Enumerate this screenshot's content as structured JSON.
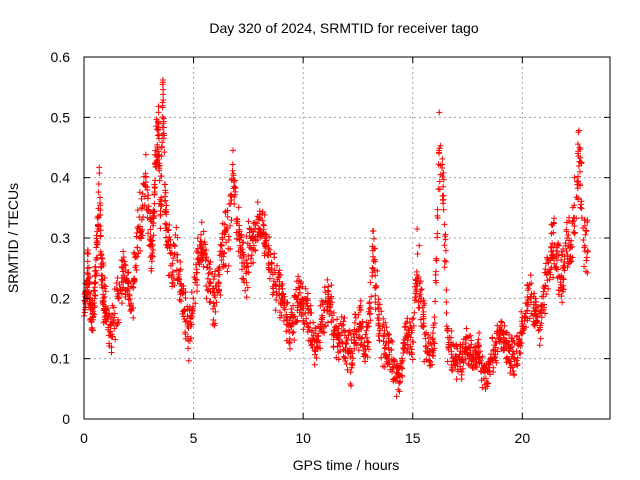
{
  "chart_data": {
    "type": "scatter",
    "title": "Day 320 of 2024, SRMTID for receiver tago",
    "xlabel": "GPS time / hours",
    "ylabel": "SRMTID / TECUs",
    "xlim": [
      0,
      24
    ],
    "ylim": [
      0,
      0.6
    ],
    "xticks": [
      0,
      5,
      10,
      15,
      20
    ],
    "yticks": [
      0,
      0.1,
      0.2,
      0.3,
      0.4,
      0.5,
      0.6
    ],
    "xtick_labels": [
      "0",
      "5",
      "10",
      "15",
      "20"
    ],
    "ytick_labels": [
      "0",
      "0.1",
      "0.2",
      "0.3",
      "0.4",
      "0.5",
      "0.6"
    ],
    "grid": true,
    "marker": "+",
    "color": "#ff0000",
    "series": [
      {
        "name": "SRMTID",
        "x": [
          0.0,
          0.1,
          0.2,
          0.3,
          0.4,
          0.5,
          0.6,
          0.7,
          0.8,
          0.9,
          1.0,
          1.2,
          1.4,
          1.6,
          1.8,
          2.0,
          2.2,
          2.4,
          2.6,
          2.8,
          3.0,
          3.1,
          3.2,
          3.3,
          3.4,
          3.5,
          3.6,
          3.7,
          3.8,
          4.0,
          4.2,
          4.4,
          4.6,
          4.8,
          5.0,
          5.2,
          5.4,
          5.6,
          5.8,
          6.0,
          6.2,
          6.4,
          6.6,
          6.8,
          7.0,
          7.2,
          7.4,
          7.6,
          7.8,
          8.0,
          8.2,
          8.4,
          8.6,
          8.8,
          9.0,
          9.2,
          9.4,
          9.6,
          9.8,
          10.0,
          10.2,
          10.4,
          10.6,
          10.8,
          11.0,
          11.2,
          11.4,
          11.6,
          11.8,
          12.0,
          12.2,
          12.4,
          12.6,
          12.8,
          13.0,
          13.2,
          13.4,
          13.6,
          13.8,
          14.0,
          14.2,
          14.4,
          14.6,
          14.8,
          15.0,
          15.2,
          15.4,
          15.6,
          15.8,
          16.0,
          16.2,
          16.4,
          16.6,
          16.8,
          17.0,
          17.2,
          17.4,
          17.6,
          17.8,
          18.0,
          18.2,
          18.4,
          18.6,
          18.8,
          19.0,
          19.2,
          19.4,
          19.6,
          19.8,
          20.0,
          20.2,
          20.4,
          20.6,
          20.8,
          21.0,
          21.2,
          21.4,
          21.6,
          21.8,
          22.0,
          22.2,
          22.4,
          22.6,
          22.8
        ],
        "y": [
          0.19,
          0.21,
          0.25,
          0.18,
          0.16,
          0.22,
          0.3,
          0.38,
          0.25,
          0.2,
          0.18,
          0.15,
          0.17,
          0.2,
          0.24,
          0.22,
          0.19,
          0.28,
          0.32,
          0.42,
          0.3,
          0.28,
          0.35,
          0.45,
          0.48,
          0.33,
          0.55,
          0.36,
          0.3,
          0.25,
          0.28,
          0.22,
          0.18,
          0.15,
          0.2,
          0.26,
          0.29,
          0.25,
          0.22,
          0.2,
          0.24,
          0.3,
          0.28,
          0.42,
          0.32,
          0.27,
          0.25,
          0.29,
          0.3,
          0.33,
          0.3,
          0.28,
          0.24,
          0.22,
          0.2,
          0.18,
          0.15,
          0.17,
          0.2,
          0.19,
          0.17,
          0.14,
          0.12,
          0.15,
          0.18,
          0.2,
          0.16,
          0.13,
          0.15,
          0.12,
          0.1,
          0.14,
          0.16,
          0.12,
          0.15,
          0.28,
          0.18,
          0.14,
          0.12,
          0.11,
          0.08,
          0.06,
          0.12,
          0.15,
          0.13,
          0.25,
          0.2,
          0.12,
          0.1,
          0.15,
          0.45,
          0.38,
          0.13,
          0.11,
          0.1,
          0.09,
          0.12,
          0.11,
          0.1,
          0.12,
          0.08,
          0.07,
          0.1,
          0.12,
          0.14,
          0.13,
          0.11,
          0.1,
          0.12,
          0.15,
          0.18,
          0.2,
          0.17,
          0.16,
          0.22,
          0.25,
          0.28,
          0.26,
          0.24,
          0.3,
          0.28,
          0.35,
          0.45,
          0.3
        ]
      }
    ],
    "scatter_spread": [
      0.03,
      0.06,
      0.05,
      0.04,
      0.05,
      0.06,
      0.05,
      0.04,
      0.06,
      0.05,
      0.04,
      0.05,
      0.06,
      0.05,
      0.04,
      0.05,
      0.06,
      0.07,
      0.06,
      0.05,
      0.06,
      0.05,
      0.07,
      0.06,
      0.05,
      0.06,
      0.04,
      0.05,
      0.06,
      0.05,
      0.06,
      0.05,
      0.06,
      0.05,
      0.06,
      0.05,
      0.06,
      0.05,
      0.06,
      0.05,
      0.06,
      0.07,
      0.06,
      0.05,
      0.06,
      0.05,
      0.06,
      0.05,
      0.06,
      0.05,
      0.06,
      0.05,
      0.06,
      0.05,
      0.05,
      0.05,
      0.05,
      0.05,
      0.05,
      0.05,
      0.05,
      0.05,
      0.05,
      0.05,
      0.05,
      0.05,
      0.05,
      0.05,
      0.05,
      0.05,
      0.05,
      0.05,
      0.05,
      0.05,
      0.05,
      0.06,
      0.05,
      0.05,
      0.05,
      0.05,
      0.04,
      0.03,
      0.05,
      0.05,
      0.05,
      0.07,
      0.06,
      0.05,
      0.04,
      0.05,
      0.07,
      0.07,
      0.04,
      0.04,
      0.04,
      0.03,
      0.04,
      0.04,
      0.04,
      0.04,
      0.03,
      0.03,
      0.04,
      0.04,
      0.04,
      0.04,
      0.04,
      0.04,
      0.04,
      0.04,
      0.05,
      0.05,
      0.05,
      0.05,
      0.06,
      0.06,
      0.07,
      0.06,
      0.06,
      0.06,
      0.06,
      0.07,
      0.08,
      0.06
    ]
  }
}
